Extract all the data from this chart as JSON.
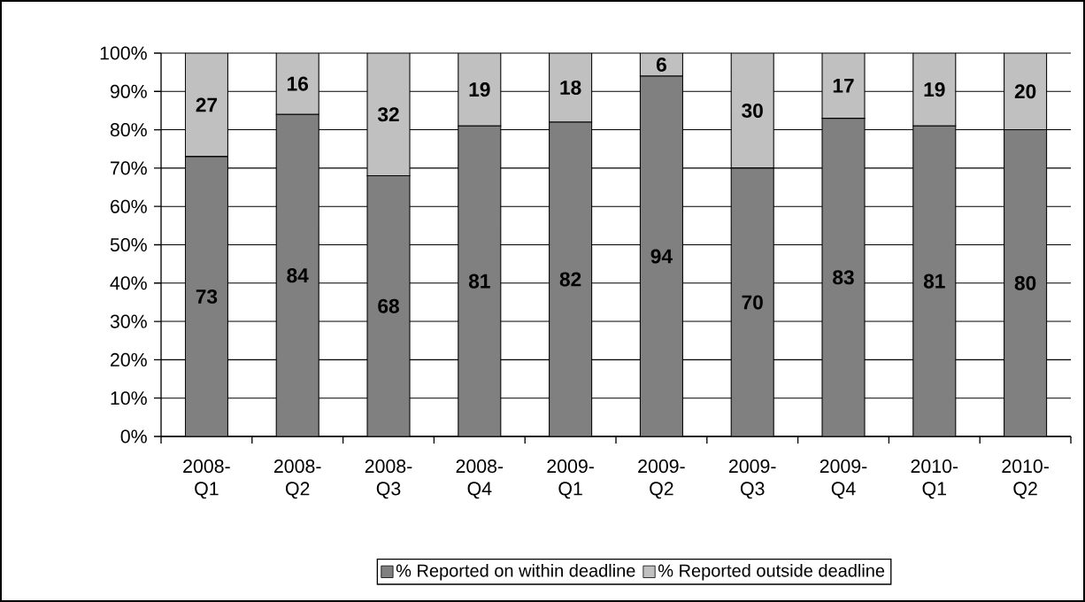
{
  "chart_data": {
    "type": "bar",
    "stacked": true,
    "categories": [
      "2008-Q1",
      "2008-Q2",
      "2008-Q3",
      "2008-Q4",
      "2009-Q1",
      "2009-Q2",
      "2009-Q3",
      "2009-Q4",
      "2010-Q1",
      "2010-Q2"
    ],
    "series": [
      {
        "name": "% Reported on within deadline",
        "color": "#808080",
        "values": [
          73,
          84,
          68,
          81,
          82,
          94,
          70,
          83,
          81,
          80
        ]
      },
      {
        "name": "% Reported outside deadline",
        "color": "#c0c0c0",
        "values": [
          27,
          16,
          32,
          19,
          18,
          6,
          30,
          17,
          19,
          20
        ]
      }
    ],
    "ylim": [
      0,
      100
    ],
    "yticks": [
      {
        "value": 0,
        "label": "0%"
      },
      {
        "value": 10,
        "label": "10%"
      },
      {
        "value": 20,
        "label": "20%"
      },
      {
        "value": 30,
        "label": "30%"
      },
      {
        "value": 40,
        "label": "40%"
      },
      {
        "value": 50,
        "label": "50%"
      },
      {
        "value": 60,
        "label": "60%"
      },
      {
        "value": 70,
        "label": "70%"
      },
      {
        "value": 80,
        "label": "80%"
      },
      {
        "value": 90,
        "label": "90%"
      },
      {
        "value": 100,
        "label": "100%"
      }
    ],
    "grid": "y",
    "legend": "bottom",
    "data_labels": true
  }
}
